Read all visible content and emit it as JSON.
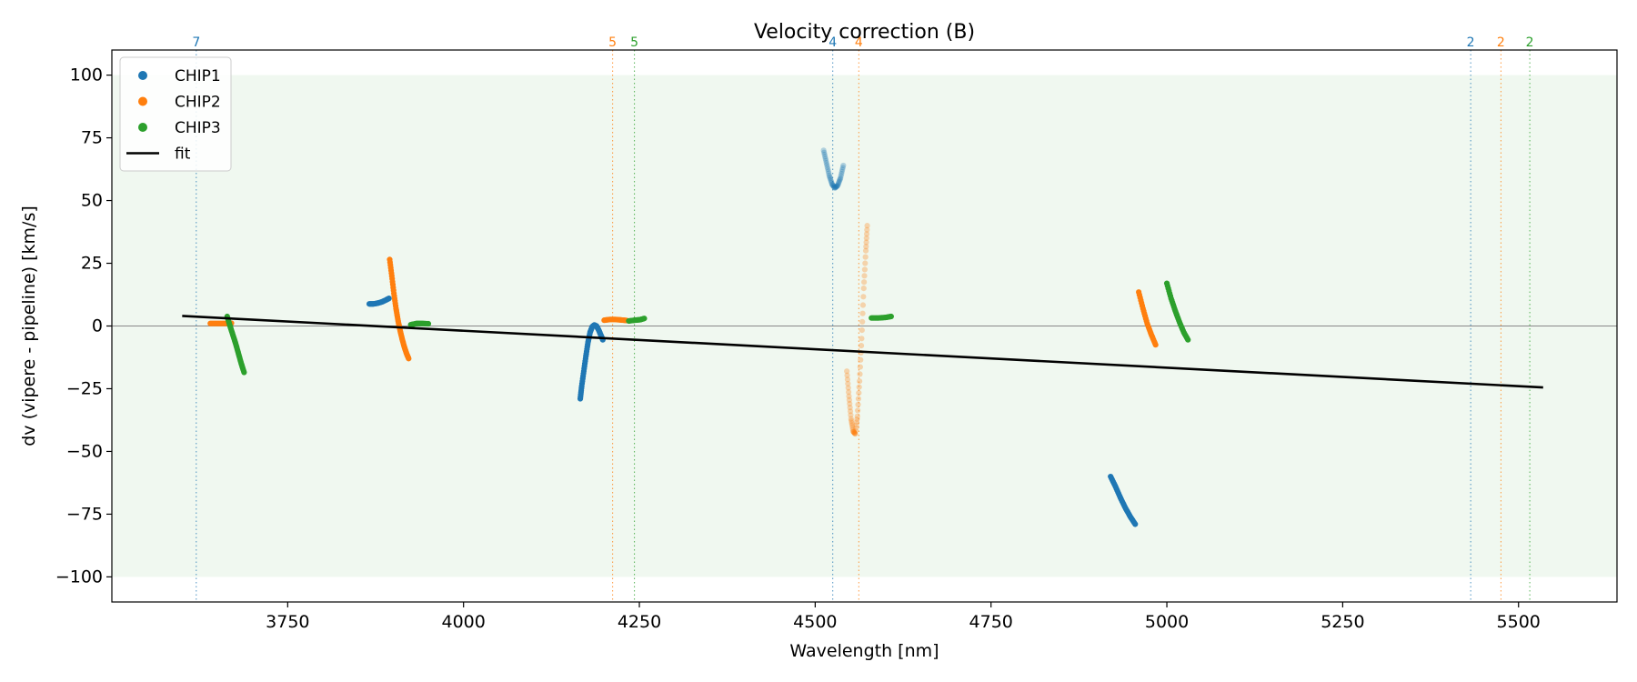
{
  "chart_data": {
    "type": "scatter",
    "title": "Velocity correction (B)",
    "xlabel": "Wavelength [nm]",
    "ylabel": "dv (vipere - pipeline) [km/s]",
    "xlim": [
      3500,
      5640
    ],
    "ylim": [
      -110,
      110
    ],
    "xticks": [
      3750,
      4000,
      4250,
      4500,
      4750,
      5000,
      5250,
      5500
    ],
    "yticks": [
      -100,
      -75,
      -50,
      -25,
      0,
      25,
      50,
      75,
      100
    ],
    "band": [
      -100,
      100
    ],
    "band_color": "#2ca02c",
    "zero_line": 0,
    "legend": {
      "location": "top-left",
      "entries": [
        {
          "label": "CHIP1",
          "kind": "marker",
          "color": "#1f77b4"
        },
        {
          "label": "CHIP2",
          "kind": "marker",
          "color": "#ff7f0e"
        },
        {
          "label": "CHIP3",
          "kind": "marker",
          "color": "#2ca02c"
        },
        {
          "label": "fit",
          "kind": "line",
          "color": "#000000"
        }
      ]
    },
    "fit": {
      "x": [
        3600,
        5535
      ],
      "y": [
        4,
        -24.5
      ],
      "color": "#000000"
    },
    "order_lines": [
      {
        "x": 3620,
        "label": "7",
        "color": "#1f77b4"
      },
      {
        "x": 4212,
        "label": "5",
        "color": "#ff7f0e"
      },
      {
        "x": 4243,
        "label": "5",
        "color": "#2ca02c"
      },
      {
        "x": 4525,
        "label": "4",
        "color": "#1f77b4"
      },
      {
        "x": 4562,
        "label": "4",
        "color": "#ff7f0e"
      },
      {
        "x": 5432,
        "label": "2",
        "color": "#1f77b4"
      },
      {
        "x": 5475,
        "label": "2",
        "color": "#ff7f0e"
      },
      {
        "x": 5516,
        "label": "2",
        "color": "#2ca02c"
      }
    ],
    "series": [
      {
        "name": "CHIP1",
        "color": "#1f77b4",
        "segments": [
          {
            "alpha": 1,
            "points": [
              [
                3866,
                8.8
              ],
              [
                3872,
                8.8
              ],
              [
                3878,
                9.1
              ],
              [
                3884,
                9.6
              ],
              [
                3890,
                10.4
              ],
              [
                3894,
                11
              ]
            ]
          },
          {
            "alpha": 1,
            "points": [
              [
                4166,
                -29
              ],
              [
                4168,
                -24
              ],
              [
                4171,
                -18
              ],
              [
                4174,
                -12
              ],
              [
                4177,
                -6.5
              ],
              [
                4180,
                -2.5
              ],
              [
                4183,
                -0.3
              ],
              [
                4186,
                0.4
              ],
              [
                4189,
                0
              ],
              [
                4192,
                -1.5
              ],
              [
                4195,
                -3.5
              ],
              [
                4198,
                -5.5
              ]
            ]
          },
          {
            "alpha": 0.3,
            "points": [
              [
                4512,
                70
              ],
              [
                4516,
                65
              ],
              [
                4520,
                60
              ],
              [
                4524,
                56.5
              ],
              [
                4528,
                55
              ],
              [
                4532,
                56
              ],
              [
                4536,
                59
              ],
              [
                4540,
                64
              ]
            ]
          },
          {
            "alpha": 1,
            "points": [
              [
                4920,
                -60
              ],
              [
                4927,
                -64
              ],
              [
                4934,
                -68.5
              ],
              [
                4941,
                -72.5
              ],
              [
                4948,
                -76
              ],
              [
                4955,
                -79
              ]
            ]
          }
        ]
      },
      {
        "name": "CHIP2",
        "color": "#ff7f0e",
        "segments": [
          {
            "alpha": 1,
            "points": [
              [
                3640,
                1
              ],
              [
                3650,
                1
              ],
              [
                3660,
                1
              ],
              [
                3670,
                1.1
              ]
            ]
          },
          {
            "alpha": 1,
            "points": [
              [
                3895,
                26.5
              ],
              [
                3898,
                20
              ],
              [
                3901,
                13
              ],
              [
                3904,
                7
              ],
              [
                3907,
                2
              ],
              [
                3910,
                -2
              ],
              [
                3913,
                -5.5
              ],
              [
                3916,
                -8.5
              ],
              [
                3919,
                -11
              ],
              [
                3922,
                -13
              ]
            ]
          },
          {
            "alpha": 1,
            "points": [
              [
                4200,
                2.3
              ],
              [
                4208,
                2.6
              ],
              [
                4216,
                2.6
              ],
              [
                4224,
                2.4
              ],
              [
                4232,
                2.2
              ]
            ]
          },
          {
            "alpha": 0.3,
            "points": [
              [
                4545,
                -18
              ],
              [
                4548,
                -28
              ],
              [
                4551,
                -37
              ],
              [
                4554,
                -42
              ],
              [
                4557,
                -43
              ],
              [
                4560,
                -36
              ],
              [
                4563,
                -22
              ],
              [
                4566,
                -5
              ],
              [
                4569,
                15
              ],
              [
                4572,
                30
              ],
              [
                4574,
                40
              ]
            ]
          },
          {
            "alpha": 1,
            "points": [
              [
                4960,
                13.5
              ],
              [
                4966,
                7
              ],
              [
                4972,
                1
              ],
              [
                4978,
                -3.5
              ],
              [
                4984,
                -7.5
              ]
            ]
          }
        ]
      },
      {
        "name": "CHIP3",
        "color": "#2ca02c",
        "segments": [
          {
            "alpha": 1,
            "points": [
              [
                3664,
                3.8
              ],
              [
                3668,
                0
              ],
              [
                3672,
                -3.5
              ],
              [
                3676,
                -7
              ],
              [
                3680,
                -11
              ],
              [
                3684,
                -15
              ],
              [
                3688,
                -18.5
              ]
            ]
          },
          {
            "alpha": 1,
            "points": [
              [
                3925,
                0.5
              ],
              [
                3933,
                1
              ],
              [
                3941,
                1
              ],
              [
                3950,
                0.9
              ]
            ]
          },
          {
            "alpha": 1,
            "points": [
              [
                4235,
                2
              ],
              [
                4243,
                2.3
              ],
              [
                4251,
                2.5
              ],
              [
                4257,
                3
              ]
            ]
          },
          {
            "alpha": 1,
            "points": [
              [
                4580,
                3.2
              ],
              [
                4590,
                3.2
              ],
              [
                4600,
                3.4
              ],
              [
                4608,
                3.8
              ]
            ]
          },
          {
            "alpha": 1,
            "points": [
              [
                5000,
                17
              ],
              [
                5006,
                11
              ],
              [
                5012,
                6
              ],
              [
                5018,
                1.5
              ],
              [
                5024,
                -2.5
              ],
              [
                5030,
                -5.5
              ]
            ]
          }
        ]
      }
    ]
  }
}
